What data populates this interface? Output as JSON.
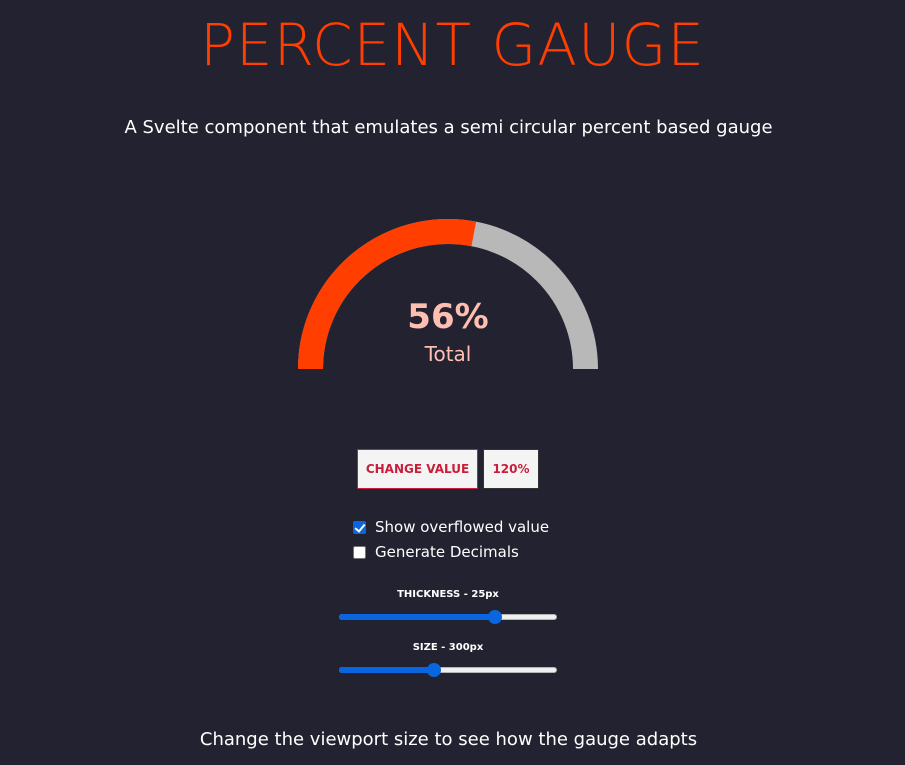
{
  "header": {
    "title": "PERCENT GAUGE",
    "subtitle": "A Svelte component that emulates a semi circular percent based gauge"
  },
  "gauge": {
    "value": 56,
    "value_text": "56%",
    "label": "Total",
    "fill_color": "#ff3e00",
    "track_color": "#b8b8b8",
    "text_color": "#ffbfb0"
  },
  "controls": {
    "change_value_label": "CHANGE VALUE",
    "percent_button_label": "120%",
    "show_overflow": {
      "label": "Show overflowed value",
      "checked": true
    },
    "generate_decimals": {
      "label": "Generate Decimals",
      "checked": false
    },
    "thickness_slider": {
      "label": "THICKNESS - 25px",
      "fraction": 0.73
    },
    "size_slider": {
      "label": "SIZE - 300px",
      "fraction": 0.43
    }
  },
  "footer": {
    "text": "Change the viewport size to see how the gauge adapts"
  },
  "colors": {
    "background": "#232231",
    "accent": "#ff3e00",
    "button_text": "#c81e3c",
    "control_blue": "#0a66e0"
  }
}
